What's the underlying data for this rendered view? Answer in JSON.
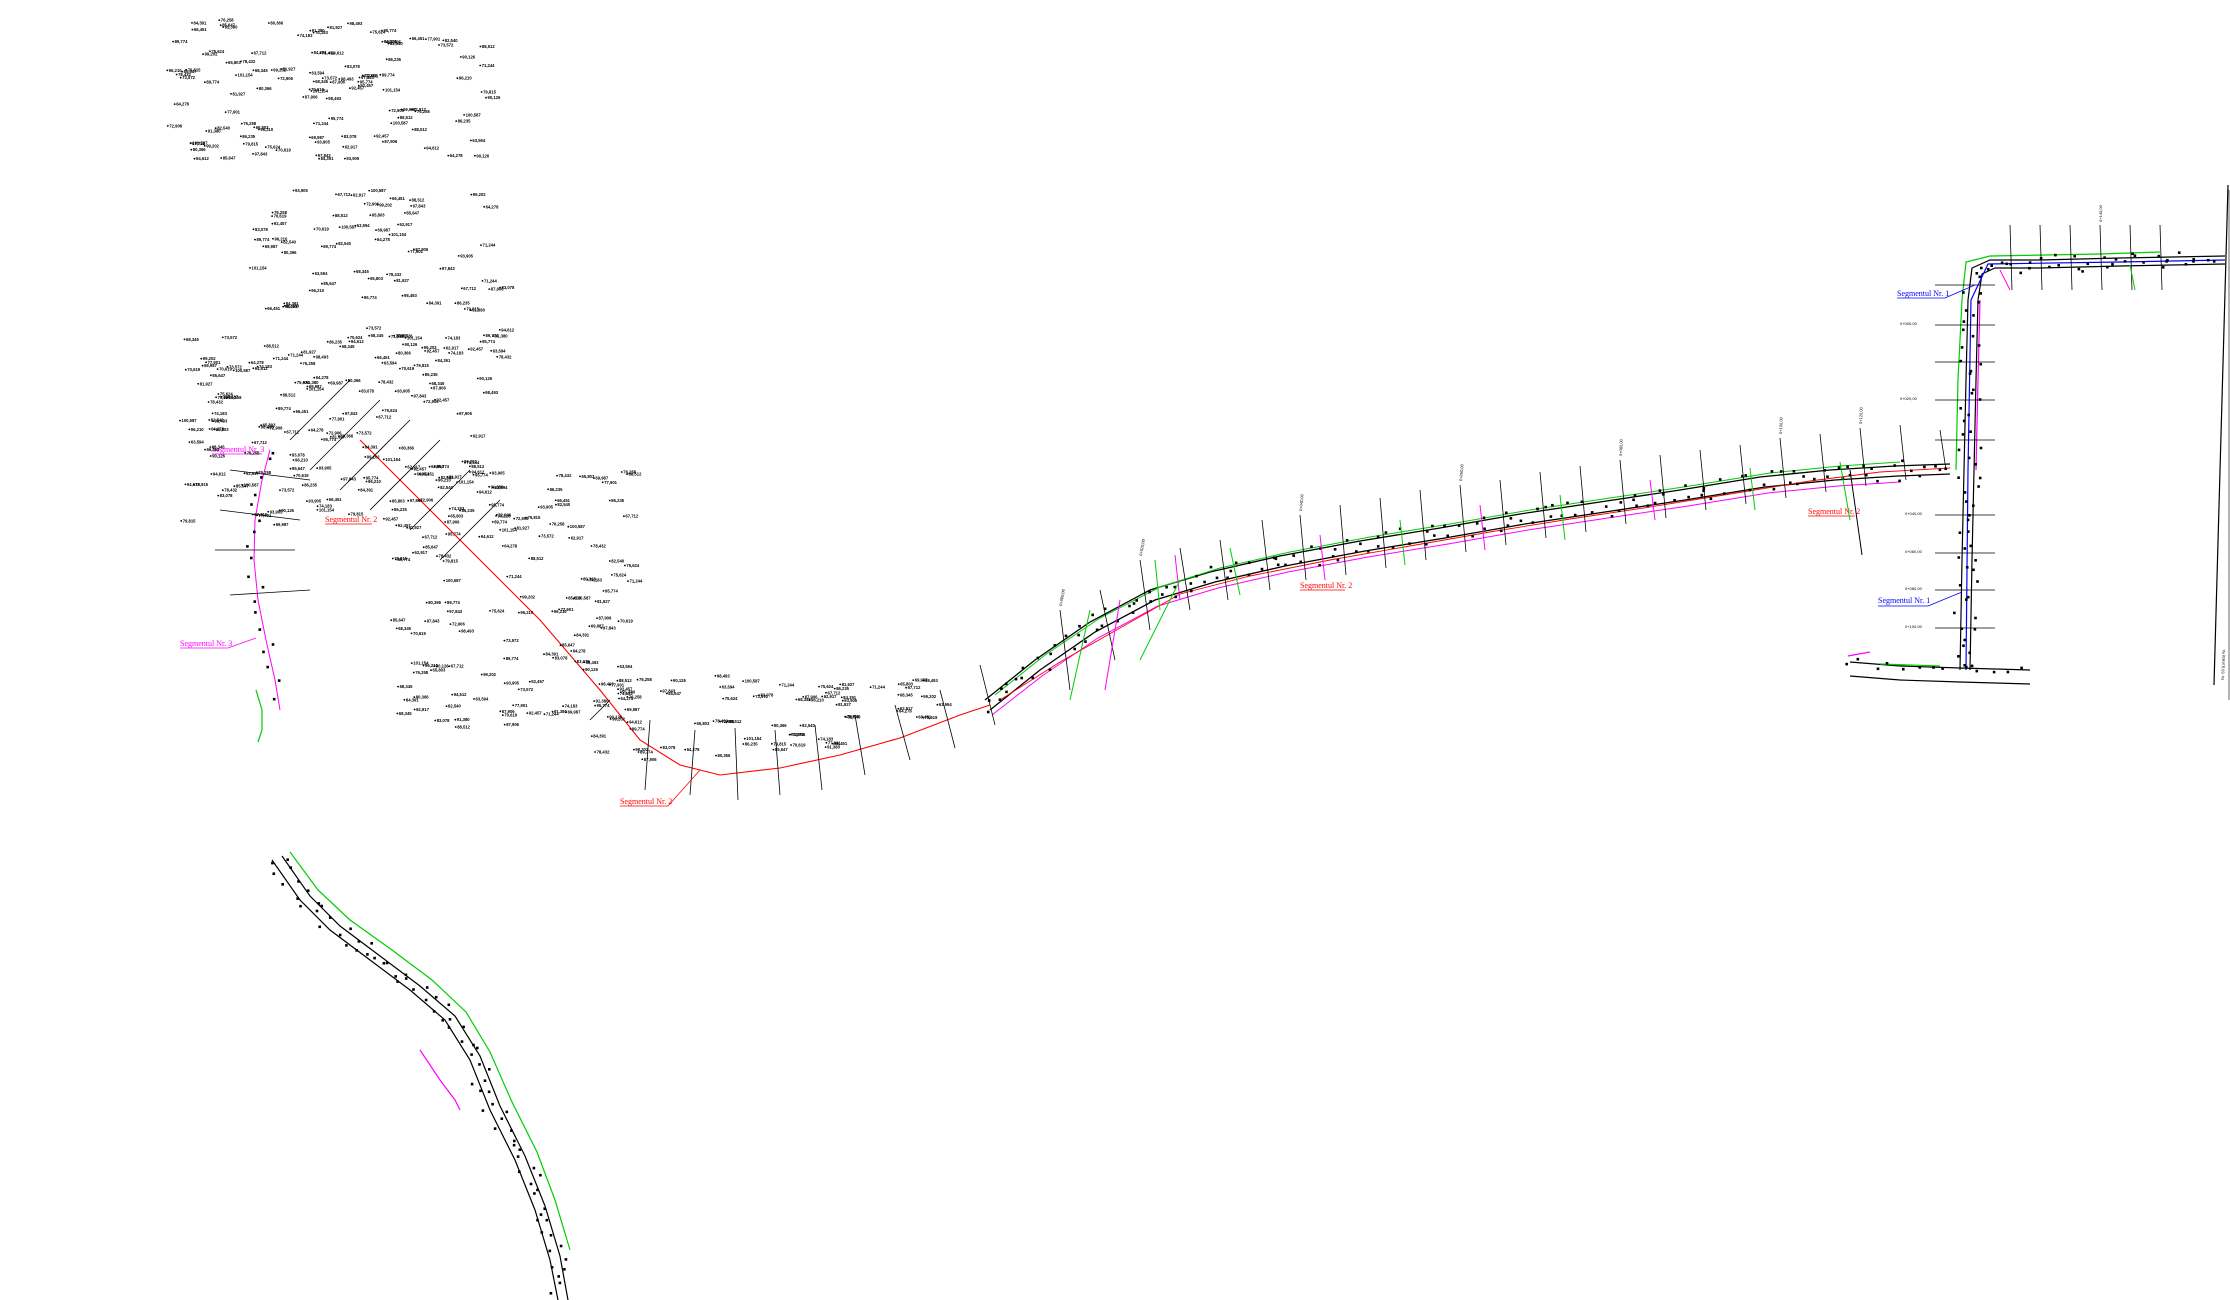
{
  "drawing": {
    "segment_labels": {
      "seg1_top": "Segmentul Nr. 1",
      "seg1_lower": "Segmentul Nr. 1",
      "seg2_main": "Segmentul Nr. 2",
      "seg2_middle": "Segmentul Nr. 2",
      "seg2_right": "Segmentul Nr. 2",
      "seg2_cluster": "Segmentul Nr. 2",
      "seg3_left": "Segmentul Nr. 3",
      "seg3_top": "Segmentul Nr. 3"
    },
    "frame_text": "Nr. 63 (Limita) Nr.",
    "chainage_right": [
      "0+000,00",
      "0+020,00",
      "0+040,00",
      "0+060,00",
      "0+080,00",
      "0+100,00",
      "0+120,00",
      "0+140,00"
    ],
    "chainage_left": [
      "0+000,00",
      "0+020,00",
      "0+040,00",
      "0+060,00",
      "0+080,00",
      "0+100,00"
    ],
    "elevations": [
      "98,493",
      "99,202",
      "101,154",
      "100,587",
      "97,843",
      "96,210",
      "95,774",
      "94,612",
      "93,905",
      "92,457",
      "91,380",
      "90,126",
      "89,774",
      "88,512",
      "87,906",
      "86,235",
      "85,647",
      "84,391",
      "83,078",
      "82,540",
      "81,927",
      "80,366",
      "79,815",
      "78,432",
      "77,901",
      "76,258",
      "75,624",
      "74,183",
      "73,572",
      "72,906",
      "71,244",
      "70,619",
      "69,987",
      "68,345",
      "67,712",
      "66,451",
      "65,803",
      "64,278",
      "63,594",
      "62,917"
    ],
    "colors": {
      "road_edge": "#000000",
      "axis_red": "#ff0000",
      "magenta": "#ff00ff",
      "green": "#00cc00",
      "blue": "#0000ff",
      "black": "#000000",
      "background": "#ffffff"
    }
  }
}
